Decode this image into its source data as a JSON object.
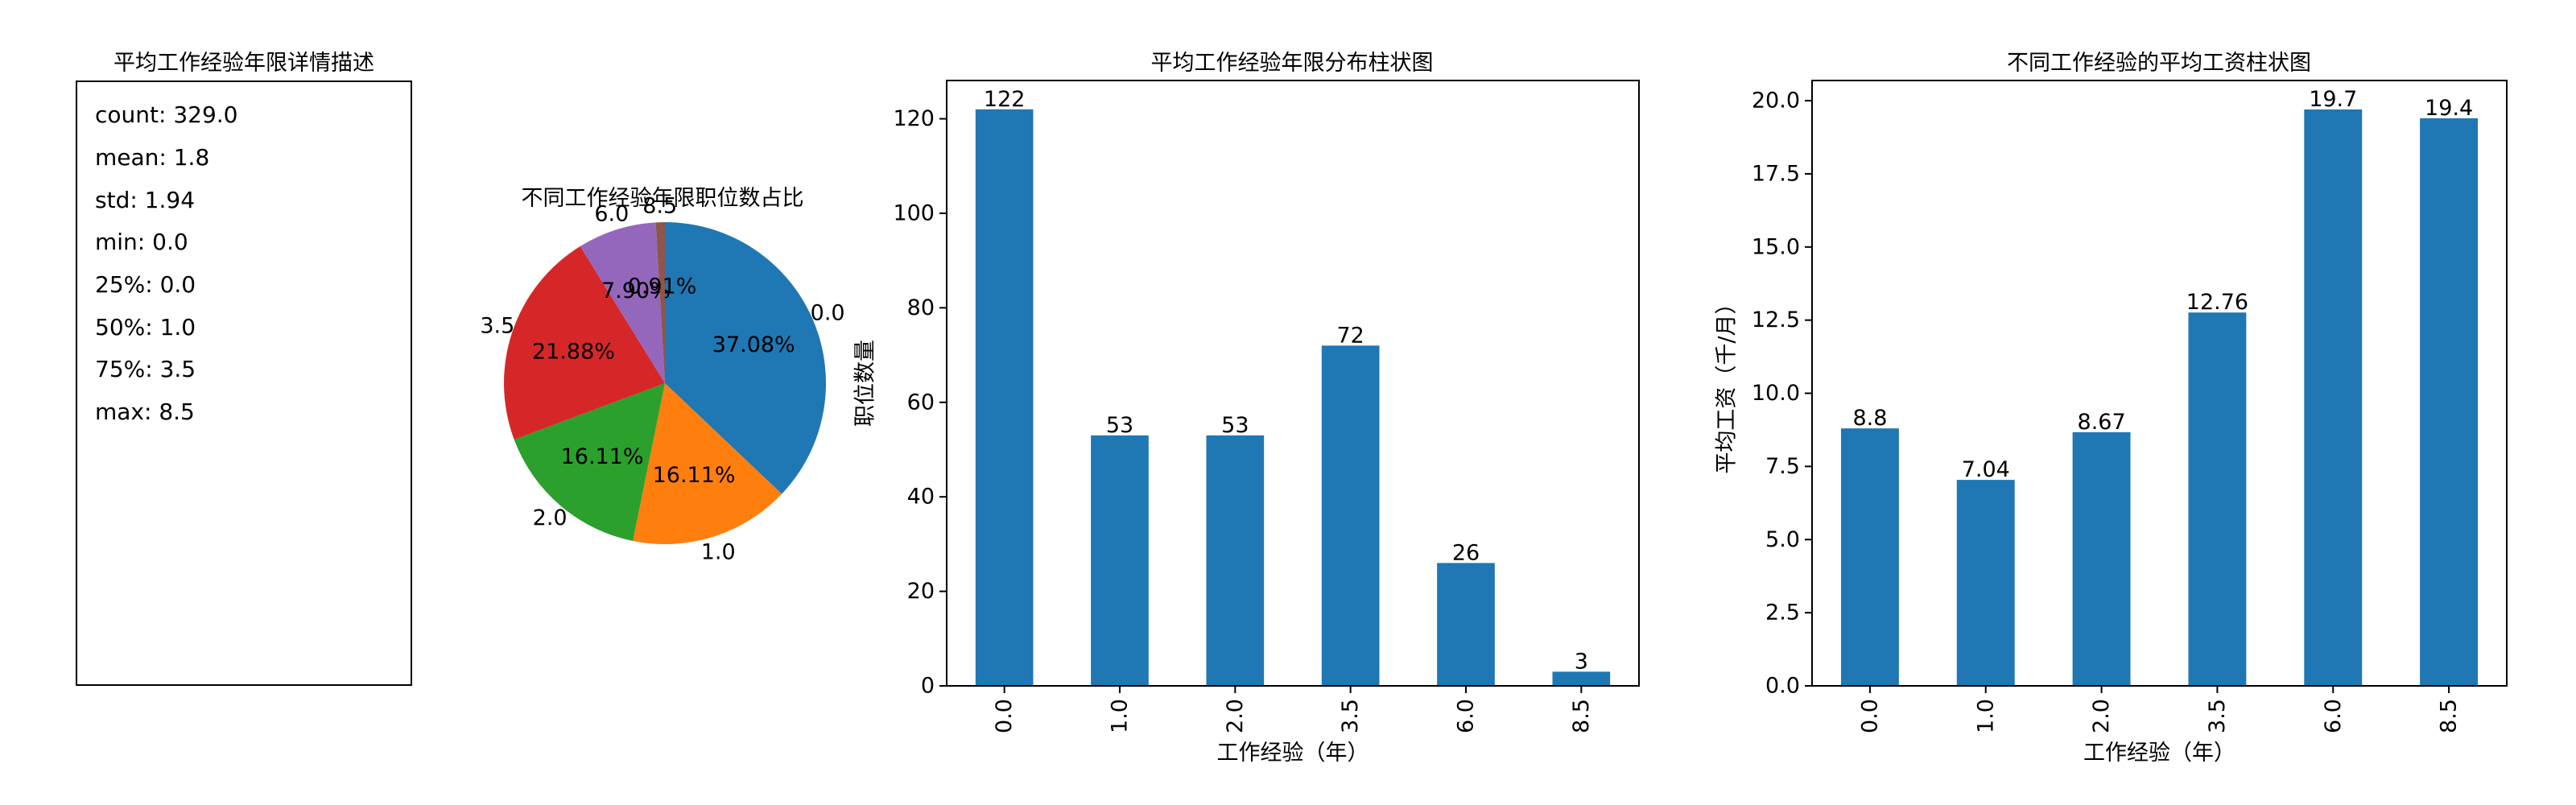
{
  "stats_panel": {
    "title": "平均工作经验年限详情描述",
    "lines": [
      "count: 329.0",
      "mean: 1.8",
      "std: 1.94",
      "min: 0.0",
      "25%: 0.0",
      "50%: 1.0",
      "75%: 3.5",
      "max: 8.5"
    ]
  },
  "colors": {
    "blue": "#1f77b4",
    "orange": "#ff7f0e",
    "green": "#2ca02c",
    "red": "#d62728",
    "purple": "#9467bd",
    "brown": "#8c564b"
  },
  "chart_data": [
    {
      "type": "pie",
      "title": "不同工作经验年限职位数占比",
      "labels": [
        "0.0",
        "1.0",
        "2.0",
        "3.5",
        "6.0",
        "8.5"
      ],
      "values": [
        122,
        53,
        53,
        72,
        26,
        3
      ],
      "percent_labels": [
        "37.08%",
        "16.11%",
        "16.11%",
        "21.88%",
        "7.90%",
        "0.91%"
      ],
      "colors": [
        "#1f77b4",
        "#ff7f0e",
        "#2ca02c",
        "#d62728",
        "#9467bd",
        "#8c564b"
      ]
    },
    {
      "type": "bar",
      "title": "平均工作经验年限分布柱状图",
      "categories": [
        "0.0",
        "1.0",
        "2.0",
        "3.5",
        "6.0",
        "8.5"
      ],
      "values": [
        122,
        53,
        53,
        72,
        26,
        3
      ],
      "value_labels": [
        "122",
        "53",
        "53",
        "72",
        "26",
        "3"
      ],
      "xlabel": "工作经验（年）",
      "ylabel": "职位数量",
      "ylim": [
        0,
        128.1
      ],
      "yticks": [
        "0",
        "20",
        "40",
        "60",
        "80",
        "100",
        "120"
      ],
      "color": "#1f77b4"
    },
    {
      "type": "bar",
      "title": "不同工作经验的平均工资柱状图",
      "categories": [
        "0.0",
        "1.0",
        "2.0",
        "3.5",
        "6.0",
        "8.5"
      ],
      "values": [
        8.8,
        7.04,
        8.67,
        12.76,
        19.7,
        19.4
      ],
      "value_labels": [
        "8.8",
        "7.04",
        "8.67",
        "12.76",
        "19.7",
        "19.4"
      ],
      "xlabel": "工作经验（年）",
      "ylabel": "平均工资（千/月）",
      "ylim": [
        0,
        20.69
      ],
      "yticks": [
        "0.0",
        "2.5",
        "5.0",
        "7.5",
        "10.0",
        "12.5",
        "15.0",
        "17.5",
        "20.0"
      ],
      "color": "#1f77b4"
    }
  ]
}
